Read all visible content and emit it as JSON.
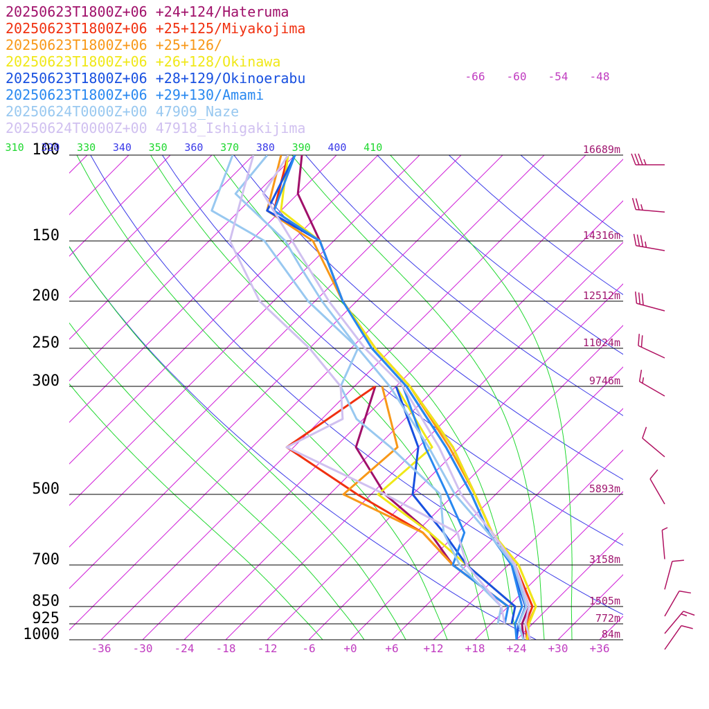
{
  "chart_data": {
    "type": "line",
    "title": "",
    "legend": [
      {
        "label": "20250623T1800Z+06 +24+124/Hateruma",
        "color": "#a0106a"
      },
      {
        "label": "20250623T1800Z+06 +25+125/Miyakojima",
        "color": "#f03010"
      },
      {
        "label": "20250623T1800Z+06 +25+126/",
        "color": "#f89818"
      },
      {
        "label": "20250623T1800Z+06 +26+128/Okinawa",
        "color": "#f0e818"
      },
      {
        "label": "20250623T1800Z+06 +28+129/Okinoerabu",
        "color": "#1850e0"
      },
      {
        "label": "20250623T1800Z+06 +29+130/Amami",
        "color": "#2888f0"
      },
      {
        "label": "20250624T0000Z+00 47909_Naze",
        "color": "#98c8f0"
      },
      {
        "label": "20250624T0000Z+00 47918_Ishigakijima",
        "color": "#d0c0f0"
      }
    ],
    "pressure_levels": [
      100,
      150,
      200,
      250,
      300,
      500,
      700,
      850,
      925,
      1000
    ],
    "pressure_labels": [
      "100",
      "150",
      "200",
      "250",
      "300",
      "500",
      "700",
      "850",
      "925",
      "1000"
    ],
    "height_labels": [
      {
        "p": 100,
        "text": "16689m"
      },
      {
        "p": 150,
        "text": "14316m"
      },
      {
        "p": 200,
        "text": "12512m"
      },
      {
        "p": 250,
        "text": "11024m"
      },
      {
        "p": 300,
        "text": "9746m"
      },
      {
        "p": 500,
        "text": "5893m"
      },
      {
        "p": 700,
        "text": "3158m"
      },
      {
        "p": 850,
        "text": "1505m"
      },
      {
        "p": 925,
        "text": "772m"
      },
      {
        "p": 1000,
        "text": "84m"
      }
    ],
    "x_ticks": [
      -36,
      -30,
      -24,
      -18,
      -12,
      -6,
      0,
      6,
      12,
      18,
      24,
      30,
      36
    ],
    "x_tick_labels": [
      "-36",
      "-30",
      "-24",
      "-18",
      "-12",
      "-6",
      "+0",
      "+6",
      "+12",
      "+18",
      "+24",
      "+30",
      "+36"
    ],
    "top_isotherm_labels": [
      "-66",
      "-60",
      "-54",
      "-48"
    ],
    "theta_labels": [
      "310",
      "320",
      "330",
      "340",
      "350",
      "360",
      "370",
      "380",
      "390",
      "400",
      "410"
    ],
    "xlim": [
      -42,
      38
    ],
    "plim": [
      1000,
      100
    ],
    "series": [
      {
        "name": "20250623T1800Z+06 +24+124/Hateruma",
        "color": "#a0106a",
        "temperature": [
          [
            1000,
            25.0
          ],
          [
            925,
            22.5
          ],
          [
            850,
            21.0
          ],
          [
            700,
            13.0
          ],
          [
            600,
            5.0
          ],
          [
            500,
            -3.0
          ],
          [
            400,
            -13.0
          ],
          [
            300,
            -28.0
          ],
          [
            250,
            -38.5
          ],
          [
            200,
            -50.0
          ],
          [
            150,
            -62.0
          ],
          [
            120,
            -72.0
          ],
          [
            100,
            -77.0
          ]
        ],
        "dewpoint": [
          [
            850,
            18.0
          ],
          [
            700,
            4.0
          ],
          [
            600,
            -4.0
          ],
          [
            500,
            -16.0
          ],
          [
            400,
            -27.0
          ],
          [
            300,
            -33.0
          ]
        ]
      },
      {
        "name": "20250623T1800Z+06 +25+125/Miyakojima",
        "color": "#f03010",
        "temperature": [
          [
            1000,
            25.5
          ],
          [
            925,
            23.0
          ],
          [
            850,
            21.5
          ],
          [
            700,
            13.0
          ],
          [
            600,
            5.0
          ],
          [
            500,
            -3.0
          ],
          [
            400,
            -13.0
          ],
          [
            300,
            -28.0
          ],
          [
            250,
            -38.5
          ],
          [
            200,
            -50.0
          ],
          [
            150,
            -62.0
          ],
          [
            130,
            -73.0
          ],
          [
            100,
            -79.0
          ]
        ],
        "dewpoint": [
          [
            850,
            18.0
          ],
          [
            700,
            4.0
          ],
          [
            600,
            -5.0
          ],
          [
            500,
            -20.0
          ],
          [
            400,
            -37.0
          ],
          [
            300,
            -33.0
          ]
        ]
      },
      {
        "name": "20250623T1800Z+06 +25+126/",
        "color": "#f89818",
        "temperature": [
          [
            1000,
            25.8
          ],
          [
            925,
            23.3
          ],
          [
            850,
            22.0
          ],
          [
            700,
            13.5
          ],
          [
            600,
            5.0
          ],
          [
            500,
            -3.0
          ],
          [
            400,
            -13.5
          ],
          [
            300,
            -28.0
          ],
          [
            250,
            -38.5
          ],
          [
            200,
            -50.0
          ],
          [
            150,
            -63.0
          ],
          [
            130,
            -74.0
          ],
          [
            100,
            -80.0
          ]
        ],
        "dewpoint": [
          [
            850,
            18.0
          ],
          [
            700,
            4.0
          ],
          [
            600,
            -5.0
          ],
          [
            500,
            -22.0
          ],
          [
            400,
            -21.0
          ],
          [
            300,
            -32.0
          ]
        ]
      },
      {
        "name": "20250623T1800Z+06 +26+128/Okinawa",
        "color": "#f0e818",
        "temperature": [
          [
            1000,
            25.5
          ],
          [
            925,
            23.5
          ],
          [
            850,
            22.0
          ],
          [
            700,
            13.5
          ],
          [
            600,
            5.0
          ],
          [
            500,
            -3.0
          ],
          [
            400,
            -13.0
          ],
          [
            300,
            -28.0
          ],
          [
            250,
            -38.5
          ],
          [
            200,
            -50.0
          ],
          [
            150,
            -62.0
          ],
          [
            130,
            -72.0
          ],
          [
            100,
            -79.0
          ]
        ],
        "dewpoint": [
          [
            850,
            19.0
          ],
          [
            700,
            6.0
          ],
          [
            600,
            -4.0
          ],
          [
            500,
            -17.0
          ],
          [
            400,
            -16.0
          ],
          [
            300,
            -30.0
          ]
        ]
      },
      {
        "name": "20250623T1800Z+06 +28+129/Okinoerabu",
        "color": "#1850e0",
        "temperature": [
          [
            1000,
            24.0
          ],
          [
            925,
            22.0
          ],
          [
            850,
            20.5
          ],
          [
            700,
            12.5
          ],
          [
            600,
            4.5
          ],
          [
            500,
            -3.5
          ],
          [
            400,
            -14.0
          ],
          [
            300,
            -28.5
          ],
          [
            250,
            -39.0
          ],
          [
            200,
            -50.0
          ],
          [
            150,
            -62.0
          ],
          [
            130,
            -74.0
          ],
          [
            100,
            -78.0
          ]
        ],
        "dewpoint": [
          [
            925,
            21.0
          ],
          [
            850,
            19.0
          ],
          [
            700,
            6.0
          ],
          [
            600,
            -2.0
          ],
          [
            500,
            -12.0
          ],
          [
            400,
            -18.0
          ],
          [
            300,
            -30.0
          ]
        ]
      },
      {
        "name": "20250623T1800Z+06 +29+130/Amami",
        "color": "#2888f0",
        "temperature": [
          [
            1000,
            24.0
          ],
          [
            925,
            21.5
          ],
          [
            850,
            20.0
          ],
          [
            700,
            12.5
          ],
          [
            600,
            4.5
          ],
          [
            500,
            -3.5
          ],
          [
            400,
            -14.0
          ],
          [
            300,
            -28.5
          ],
          [
            250,
            -39.0
          ],
          [
            200,
            -50.0
          ],
          [
            150,
            -62.0
          ],
          [
            130,
            -73.0
          ],
          [
            100,
            -78.0
          ]
        ],
        "dewpoint": [
          [
            925,
            20.0
          ],
          [
            850,
            18.0
          ],
          [
            700,
            4.0
          ],
          [
            600,
            1.0
          ],
          [
            500,
            -7.0
          ],
          [
            400,
            -17.0
          ],
          [
            300,
            -29.0
          ]
        ]
      },
      {
        "name": "20250624T0000Z+00 47909_Naze",
        "color": "#98c8f0",
        "temperature": [
          [
            1000,
            25.0
          ],
          [
            925,
            22.0
          ],
          [
            850,
            20.6
          ],
          [
            700,
            12.8
          ],
          [
            600,
            4.4
          ],
          [
            500,
            -5.9
          ],
          [
            400,
            -16.5
          ],
          [
            300,
            -30.9
          ],
          [
            250,
            -41.0
          ],
          [
            200,
            -53.0
          ],
          [
            170,
            -61.0
          ],
          [
            150,
            -67.0
          ],
          [
            120,
            -81.0
          ],
          [
            100,
            -82.0
          ]
        ],
        "dewpoint": [
          [
            925,
            19.0
          ],
          [
            850,
            17.0
          ],
          [
            700,
            5.0
          ],
          [
            600,
            -2.0
          ],
          [
            500,
            -8.0
          ],
          [
            400,
            -22.0
          ],
          [
            350,
            -31.0
          ],
          [
            300,
            -38.0
          ],
          [
            250,
            -41.0
          ],
          [
            200,
            -55.0
          ],
          [
            150,
            -70.0
          ],
          [
            130,
            -82.0
          ],
          [
            100,
            -87.0
          ]
        ]
      },
      {
        "name": "20250624T0000Z+00 47918_Ishigakijima",
        "color": "#d0c0f0",
        "temperature": [
          [
            1000,
            26.0
          ],
          [
            925,
            23.0
          ],
          [
            850,
            21.0
          ],
          [
            700,
            13.0
          ],
          [
            600,
            5.0
          ],
          [
            500,
            -5.0
          ],
          [
            400,
            -15.0
          ],
          [
            300,
            -29.0
          ],
          [
            250,
            -40.0
          ],
          [
            200,
            -52.0
          ],
          [
            150,
            -66.0
          ],
          [
            120,
            -77.0
          ],
          [
            100,
            -79.0
          ]
        ],
        "dewpoint": [
          [
            925,
            20.0
          ],
          [
            850,
            17.0
          ],
          [
            700,
            6.0
          ],
          [
            600,
            0.0
          ],
          [
            500,
            -16.0
          ],
          [
            400,
            -37.0
          ],
          [
            350,
            -33.0
          ],
          [
            300,
            -38.0
          ],
          [
            250,
            -48.0
          ],
          [
            200,
            -62.0
          ],
          [
            150,
            -75.0
          ],
          [
            120,
            -80.0
          ],
          [
            100,
            -84.0
          ]
        ]
      }
    ],
    "wind_barbs": [
      {
        "p": 100,
        "dir": 270,
        "speed_kt": 35
      },
      {
        "p": 125,
        "dir": 275,
        "speed_kt": 25
      },
      {
        "p": 150,
        "dir": 280,
        "speed_kt": 35
      },
      {
        "p": 200,
        "dir": 285,
        "speed_kt": 30
      },
      {
        "p": 250,
        "dir": 295,
        "speed_kt": 20
      },
      {
        "p": 300,
        "dir": 300,
        "speed_kt": 15
      },
      {
        "p": 400,
        "dir": 310,
        "speed_kt": 10
      },
      {
        "p": 500,
        "dir": 330,
        "speed_kt": 10
      },
      {
        "p": 650,
        "dir": 355,
        "speed_kt": 5
      },
      {
        "p": 750,
        "dir": 15,
        "speed_kt": 10
      },
      {
        "p": 850,
        "dir": 30,
        "speed_kt": 10
      },
      {
        "p": 925,
        "dir": 40,
        "speed_kt": 15
      },
      {
        "p": 1000,
        "dir": 35,
        "speed_kt": 10
      }
    ],
    "colors": {
      "isotherm": "#d020d8",
      "isobar": "#000000",
      "dry_adiabat": "#3a3ae8",
      "moist_adiabat": "#20d830",
      "label_magenta": "#c03cc0",
      "height_label": "#a01870",
      "barb": "#b01060"
    },
    "grid": true,
    "legend_placement": "top-left"
  }
}
